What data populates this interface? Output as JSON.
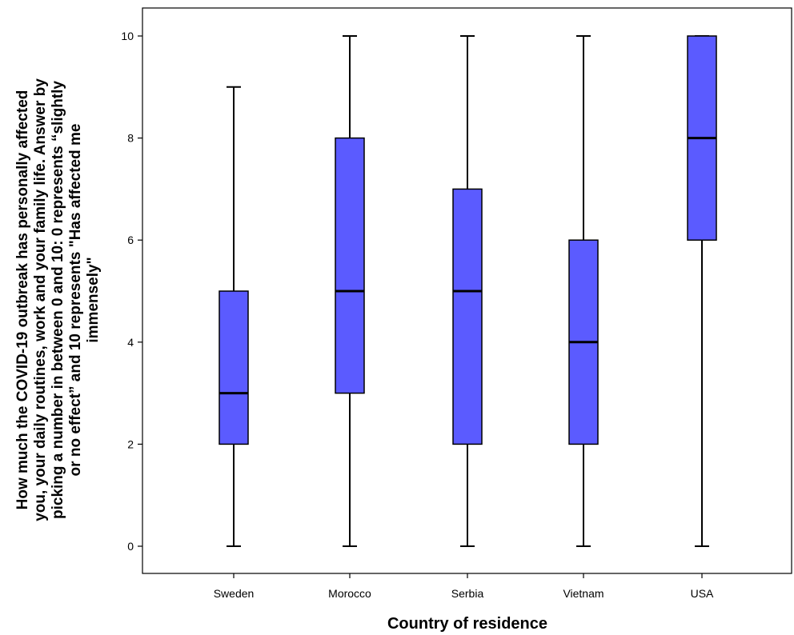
{
  "chart_data": {
    "type": "boxplot",
    "xlabel": "Country of residence",
    "ylabel_lines": [
      "How much the COVID-19 outbreak has personally affected",
      "you, your daily routines, work and your family life. Answer by",
      "picking a number in between 0 and 10: 0 represents “slightly",
      "or no effect” and 10 represents \"Has affected me",
      "immensely\""
    ],
    "ylim": [
      0,
      10
    ],
    "yticks": [
      "0",
      "2",
      "4",
      "6",
      "8",
      "10"
    ],
    "grid": false,
    "box_color": "#5b5bff",
    "categories": [
      "Sweden",
      "Morocco",
      "Serbia",
      "Vietnam",
      "USA"
    ],
    "boxes": [
      {
        "category": "Sweden",
        "min": 0,
        "q1": 2,
        "median": 3,
        "q3": 5,
        "max": 9
      },
      {
        "category": "Morocco",
        "min": 0,
        "q1": 3,
        "median": 5,
        "q3": 8,
        "max": 10
      },
      {
        "category": "Serbia",
        "min": 0,
        "q1": 2,
        "median": 5,
        "q3": 7,
        "max": 10
      },
      {
        "category": "Vietnam",
        "min": 0,
        "q1": 2,
        "median": 4,
        "q3": 6,
        "max": 10
      },
      {
        "category": "USA",
        "min": 0,
        "q1": 6,
        "median": 8,
        "q3": 10,
        "max": 10
      }
    ]
  }
}
